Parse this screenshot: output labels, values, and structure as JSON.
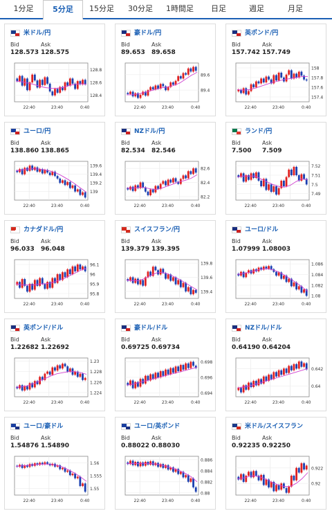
{
  "tabs": [
    "1分足",
    "5分足",
    "15分足",
    "30分足",
    "1時間足",
    "日足",
    "週足",
    "月足"
  ],
  "active_tab": 1,
  "bid_label": "Bid",
  "ask_label": "Ask",
  "colors": {
    "up": "#e02020",
    "down": "#1a3fb0",
    "ma": "#d040d0",
    "accent": "#1a5fb4"
  },
  "cards": [
    {
      "title": "米ドル/円",
      "bid": "128.573",
      "ask": "128.575",
      "flag": [
        "#1a3b8a",
        "#cc2020"
      ],
      "xticks": [
        "22:40",
        "23:40",
        "0:40"
      ],
      "yticks": [
        "128.8",
        "128.6",
        "128.4"
      ],
      "ylim": [
        128.3,
        128.9
      ],
      "closes": [
        128.62,
        128.7,
        128.55,
        128.66,
        128.48,
        128.6,
        128.72,
        128.63,
        128.52,
        128.64,
        128.56,
        128.68,
        128.58,
        128.46,
        128.4,
        128.5,
        128.44,
        128.53,
        128.48,
        128.6,
        128.55,
        128.66,
        128.58,
        128.5,
        128.62,
        128.57,
        128.64,
        128.57
      ],
      "ma": [
        128.62,
        128.61,
        128.59,
        128.57,
        128.54,
        128.52,
        128.51,
        128.51,
        128.52,
        128.55,
        128.57,
        128.58,
        128.57
      ]
    },
    {
      "title": "豪ドル/円",
      "bid": "89.653",
      "ask": "89.658",
      "flag": [
        "#1a2f80",
        "#cc2020"
      ],
      "xticks": [
        "22:40",
        "23:40",
        "0:40"
      ],
      "yticks": [
        "89.6",
        "89.4"
      ],
      "ylim": [
        89.25,
        89.75
      ],
      "closes": [
        89.35,
        89.38,
        89.32,
        89.36,
        89.3,
        89.34,
        89.38,
        89.33,
        89.4,
        89.44,
        89.41,
        89.46,
        89.42,
        89.48,
        89.45,
        89.4,
        89.44,
        89.5,
        89.47,
        89.52,
        89.58,
        89.55,
        89.62,
        89.6,
        89.68,
        89.64,
        89.7,
        89.65
      ],
      "ma": [
        89.34,
        89.34,
        89.35,
        89.37,
        89.39,
        89.41,
        89.43,
        89.44,
        89.46,
        89.49,
        89.54,
        89.59,
        89.63
      ]
    },
    {
      "title": "英ポンド/円",
      "bid": "157.742",
      "ask": "157.749",
      "flag": [
        "#1a2f80",
        "#cc2020"
      ],
      "xticks": [
        "22:40",
        "23:40",
        "0:40"
      ],
      "yticks": [
        "158",
        "157.8",
        "157.6",
        "157.4"
      ],
      "ylim": [
        157.3,
        158.1
      ],
      "closes": [
        157.55,
        157.48,
        157.58,
        157.45,
        157.52,
        157.66,
        157.6,
        157.72,
        157.68,
        157.78,
        157.7,
        157.82,
        157.76,
        157.68,
        157.85,
        157.74,
        157.9,
        157.8,
        157.72,
        157.86,
        157.95,
        157.78,
        157.88,
        157.8,
        157.92,
        157.84,
        157.76,
        157.74
      ],
      "ma": [
        157.55,
        157.54,
        157.55,
        157.58,
        157.62,
        157.66,
        157.7,
        157.73,
        157.76,
        157.78,
        157.8,
        157.82,
        157.82
      ]
    },
    {
      "title": "ユーロ/円",
      "bid": "138.860",
      "ask": "138.865",
      "flag": [
        "#1a3fa0",
        "#cc2020"
      ],
      "xticks": [
        "22:40",
        "23:40",
        "0:40"
      ],
      "yticks": [
        "139.6",
        "139.4",
        "139.2",
        "139"
      ],
      "ylim": [
        138.8,
        139.7
      ],
      "closes": [
        139.45,
        139.52,
        139.4,
        139.55,
        139.48,
        139.6,
        139.5,
        139.56,
        139.46,
        139.52,
        139.42,
        139.5,
        139.44,
        139.38,
        139.46,
        139.36,
        139.3,
        139.2,
        139.26,
        139.15,
        139.22,
        139.08,
        139.14,
        139.0,
        139.05,
        138.92,
        138.98,
        138.86
      ],
      "ma": [
        139.48,
        139.5,
        139.52,
        139.53,
        139.52,
        139.5,
        139.47,
        139.42,
        139.35,
        139.27,
        139.18,
        139.08,
        138.98
      ]
    },
    {
      "title": "NZドル/円",
      "bid": "82.534",
      "ask": "82.546",
      "flag": [
        "#1a2f80",
        "#cc2020"
      ],
      "xticks": [
        "22:40",
        "23:40",
        "0:40"
      ],
      "yticks": [
        "82.6",
        "82.4",
        "82.2"
      ],
      "ylim": [
        82.15,
        82.7
      ],
      "closes": [
        82.3,
        82.34,
        82.28,
        82.36,
        82.32,
        82.4,
        82.33,
        82.27,
        82.22,
        82.3,
        82.26,
        82.35,
        82.31,
        82.38,
        82.42,
        82.36,
        82.44,
        82.4,
        82.46,
        82.41,
        82.38,
        82.45,
        82.5,
        82.46,
        82.56,
        82.52,
        82.6,
        82.54
      ],
      "ma": [
        82.32,
        82.32,
        82.33,
        82.33,
        82.31,
        82.3,
        82.32,
        82.35,
        82.38,
        82.41,
        82.43,
        82.46,
        82.51
      ]
    },
    {
      "title": "ランド/円",
      "bid": "7.500",
      "ask": "7.509",
      "flag": [
        "#007a4d",
        "#de3831"
      ],
      "xticks": [
        "22:40",
        "23:40",
        "0:40"
      ],
      "yticks": [
        "7.52",
        "7.51",
        "7.5",
        "7.49"
      ],
      "ylim": [
        7.483,
        7.525
      ],
      "closes": [
        7.508,
        7.512,
        7.503,
        7.51,
        7.505,
        7.512,
        7.507,
        7.513,
        7.504,
        7.498,
        7.506,
        7.494,
        7.5,
        7.492,
        7.498,
        7.489,
        7.496,
        7.504,
        7.498,
        7.508,
        7.516,
        7.51,
        7.519,
        7.51,
        7.504,
        7.511,
        7.506,
        7.5
      ],
      "ma": [
        7.508,
        7.509,
        7.509,
        7.509,
        7.506,
        7.503,
        7.5,
        7.498,
        7.497,
        7.499,
        7.503,
        7.506,
        7.505
      ]
    },
    {
      "title": "カナダドル/円",
      "bid": "96.033",
      "ask": "96.048",
      "flag": [
        "#d52b1e",
        "#ffffff"
      ],
      "xticks": [
        "22:40",
        "23:40",
        "0:40"
      ],
      "yticks": [
        "96.1",
        "96",
        "95.9",
        "95.8"
      ],
      "ylim": [
        95.75,
        96.15
      ],
      "closes": [
        95.92,
        95.86,
        95.95,
        95.88,
        95.82,
        95.9,
        95.84,
        95.94,
        95.88,
        95.96,
        95.9,
        95.85,
        95.92,
        95.86,
        95.96,
        95.91,
        96.0,
        95.94,
        96.02,
        95.97,
        96.05,
        96.0,
        96.08,
        96.03,
        96.1,
        96.05,
        96.08,
        96.03
      ],
      "ma": [
        95.9,
        95.89,
        95.89,
        95.89,
        95.9,
        95.9,
        95.91,
        95.93,
        95.95,
        95.98,
        96.01,
        96.04,
        96.06
      ]
    },
    {
      "title": "スイスフラン/円",
      "bid": "139.379",
      "ask": "139.395",
      "flag": [
        "#d52b1e",
        "#d52b1e"
      ],
      "xticks": [
        "22:40",
        "23:40",
        "0:40"
      ],
      "yticks": [
        "139.8",
        "139.6",
        "139.4"
      ],
      "ylim": [
        139.3,
        139.85
      ],
      "closes": [
        139.55,
        139.6,
        139.52,
        139.58,
        139.5,
        139.56,
        139.48,
        139.6,
        139.68,
        139.62,
        139.75,
        139.7,
        139.64,
        139.72,
        139.66,
        139.58,
        139.64,
        139.55,
        139.6,
        139.5,
        139.56,
        139.46,
        139.52,
        139.4,
        139.46,
        139.36,
        139.42,
        139.38
      ],
      "ma": [
        139.56,
        139.55,
        139.55,
        139.58,
        139.62,
        139.66,
        139.67,
        139.65,
        139.61,
        139.57,
        139.52,
        139.47,
        139.42
      ]
    },
    {
      "title": "ユーロ/ドル",
      "bid": "1.07999",
      "ask": "1.08003",
      "flag": [
        "#1a2f80",
        "#cc2020"
      ],
      "xticks": [
        "22:40",
        "23:40",
        "0:40"
      ],
      "yticks": [
        "1.086",
        "1.084",
        "1.082",
        "1.08"
      ],
      "ylim": [
        1.0795,
        1.0868
      ],
      "closes": [
        1.0838,
        1.0845,
        1.0835,
        1.0843,
        1.0848,
        1.0842,
        1.085,
        1.0846,
        1.0853,
        1.0849,
        1.0855,
        1.0851,
        1.0856,
        1.085,
        1.0845,
        1.0838,
        1.0844,
        1.0832,
        1.0838,
        1.0826,
        1.0832,
        1.0818,
        1.0825,
        1.0812,
        1.0818,
        1.0806,
        1.0812,
        1.08
      ],
      "ma": [
        1.084,
        1.0842,
        1.0844,
        1.0847,
        1.085,
        1.0851,
        1.0849,
        1.0845,
        1.0839,
        1.0832,
        1.0825,
        1.0817,
        1.0808
      ]
    },
    {
      "title": "英ポンド/ドル",
      "bid": "1.22682",
      "ask": "1.22692",
      "flag": [
        "#1a2f80",
        "#cc2020"
      ],
      "xticks": [
        "22:40",
        "23:40",
        "0:40"
      ],
      "yticks": [
        "1.23",
        "1.228",
        "1.226",
        "1.224"
      ],
      "ylim": [
        1.2232,
        1.2306
      ],
      "closes": [
        1.2248,
        1.2254,
        1.2244,
        1.2252,
        1.2246,
        1.2258,
        1.225,
        1.2262,
        1.2256,
        1.227,
        1.2264,
        1.2276,
        1.228,
        1.2274,
        1.2288,
        1.2282,
        1.2292,
        1.2286,
        1.2295,
        1.229,
        1.228,
        1.2286,
        1.2274,
        1.228,
        1.227,
        1.2276,
        1.2264,
        1.2268
      ],
      "ma": [
        1.225,
        1.2251,
        1.2253,
        1.2257,
        1.2262,
        1.2267,
        1.2272,
        1.2276,
        1.2278,
        1.228,
        1.228,
        1.2278,
        1.2275
      ]
    },
    {
      "title": "豪ドル/ドル",
      "bid": "0.69725",
      "ask": "0.69734",
      "flag": [
        "#1a2f80",
        "#cc2020"
      ],
      "xticks": [
        "22:40",
        "23:40",
        "0:40"
      ],
      "yticks": [
        "0.698",
        "0.696",
        "0.694"
      ],
      "ylim": [
        0.6935,
        0.6985
      ],
      "closes": [
        0.695,
        0.6956,
        0.6946,
        0.6954,
        0.6948,
        0.6958,
        0.6952,
        0.6962,
        0.6956,
        0.6964,
        0.6958,
        0.6966,
        0.696,
        0.6968,
        0.6962,
        0.697,
        0.6964,
        0.6972,
        0.6966,
        0.6974,
        0.6968,
        0.6976,
        0.697,
        0.6978,
        0.6972,
        0.698,
        0.6975,
        0.6972
      ],
      "ma": [
        0.695,
        0.6951,
        0.6953,
        0.6955,
        0.6957,
        0.6959,
        0.6961,
        0.6963,
        0.6965,
        0.6967,
        0.6969,
        0.6971,
        0.6973
      ]
    },
    {
      "title": "NZドル/ドル",
      "bid": "0.64190",
      "ask": "0.64204",
      "flag": [
        "#1a2f80",
        "#cc2020"
      ],
      "xticks": [
        "22:40",
        "23:40",
        "0:40"
      ],
      "yticks": [
        "0.642",
        "0.64"
      ],
      "ylim": [
        0.6388,
        0.6432
      ],
      "closes": [
        0.6398,
        0.6393,
        0.6401,
        0.6396,
        0.6404,
        0.6399,
        0.6406,
        0.6401,
        0.6408,
        0.6403,
        0.6411,
        0.6406,
        0.6413,
        0.6408,
        0.6416,
        0.6411,
        0.6418,
        0.6413,
        0.642,
        0.6415,
        0.6423,
        0.6418,
        0.6425,
        0.642,
        0.6428,
        0.6422,
        0.6426,
        0.6419
      ],
      "ma": [
        0.6398,
        0.6399,
        0.64,
        0.6402,
        0.6404,
        0.6406,
        0.6408,
        0.641,
        0.6412,
        0.6414,
        0.6416,
        0.6418,
        0.642
      ]
    },
    {
      "title": "ユーロ/豪ドル",
      "bid": "1.54876",
      "ask": "1.54890",
      "flag": [
        "#1a3fa0",
        "#1a2f80"
      ],
      "xticks": [
        "22:40",
        "23:40",
        "0:40"
      ],
      "yticks": [
        "1.56",
        "1.555",
        "1.55"
      ],
      "ylim": [
        1.5475,
        1.5625
      ],
      "closes": [
        1.5585,
        1.5592,
        1.558,
        1.559,
        1.5584,
        1.5595,
        1.5588,
        1.5598,
        1.5592,
        1.56,
        1.5594,
        1.5602,
        1.5596,
        1.559,
        1.5596,
        1.5585,
        1.559,
        1.5575,
        1.558,
        1.5565,
        1.557,
        1.5552,
        1.5558,
        1.554,
        1.5546,
        1.551,
        1.552,
        1.5488
      ],
      "ma": [
        1.5586,
        1.5588,
        1.559,
        1.5592,
        1.5594,
        1.5595,
        1.5594,
        1.559,
        1.5583,
        1.5572,
        1.556,
        1.5545,
        1.5528
      ]
    },
    {
      "title": "ユーロ/英ポンド",
      "bid": "0.88022",
      "ask": "0.88030",
      "flag": [
        "#1a3fa0",
        "#1a2f80"
      ],
      "xticks": [
        "22:40",
        "23:40",
        "0:40"
      ],
      "yticks": [
        "0.886",
        "0.884",
        "0.882",
        "0.88"
      ],
      "ylim": [
        0.8796,
        0.8866
      ],
      "closes": [
        0.8852,
        0.8858,
        0.885,
        0.8856,
        0.8848,
        0.8855,
        0.8849,
        0.8856,
        0.8851,
        0.8857,
        0.885,
        0.8854,
        0.8847,
        0.8852,
        0.8845,
        0.885,
        0.8842,
        0.8846,
        0.8838,
        0.8843,
        0.8834,
        0.8838,
        0.8828,
        0.8832,
        0.882,
        0.8826,
        0.881,
        0.8802
      ],
      "ma": [
        0.8853,
        0.8853,
        0.8853,
        0.8853,
        0.8853,
        0.8852,
        0.885,
        0.8847,
        0.8844,
        0.884,
        0.8835,
        0.8829,
        0.882
      ]
    },
    {
      "title": "米ドル/スイスフラン",
      "bid": "0.92235",
      "ask": "0.92250",
      "flag": [
        "#1a3b8a",
        "#d52b1e"
      ],
      "xticks": [
        "22:40",
        "23:40",
        "0:40"
      ],
      "yticks": [
        "0.922",
        "0.92"
      ],
      "ylim": [
        0.9185,
        0.9235
      ],
      "closes": [
        0.9205,
        0.9212,
        0.9202,
        0.921,
        0.9215,
        0.9208,
        0.9216,
        0.921,
        0.9204,
        0.9211,
        0.9198,
        0.9205,
        0.9195,
        0.9202,
        0.919,
        0.9198,
        0.9192,
        0.92,
        0.9194,
        0.9188,
        0.9196,
        0.921,
        0.9204,
        0.922,
        0.9214,
        0.9226,
        0.9218,
        0.9223
      ],
      "ma": [
        0.9206,
        0.9207,
        0.9209,
        0.921,
        0.9208,
        0.9205,
        0.9201,
        0.9198,
        0.9196,
        0.9196,
        0.92,
        0.9206,
        0.9214
      ]
    }
  ]
}
